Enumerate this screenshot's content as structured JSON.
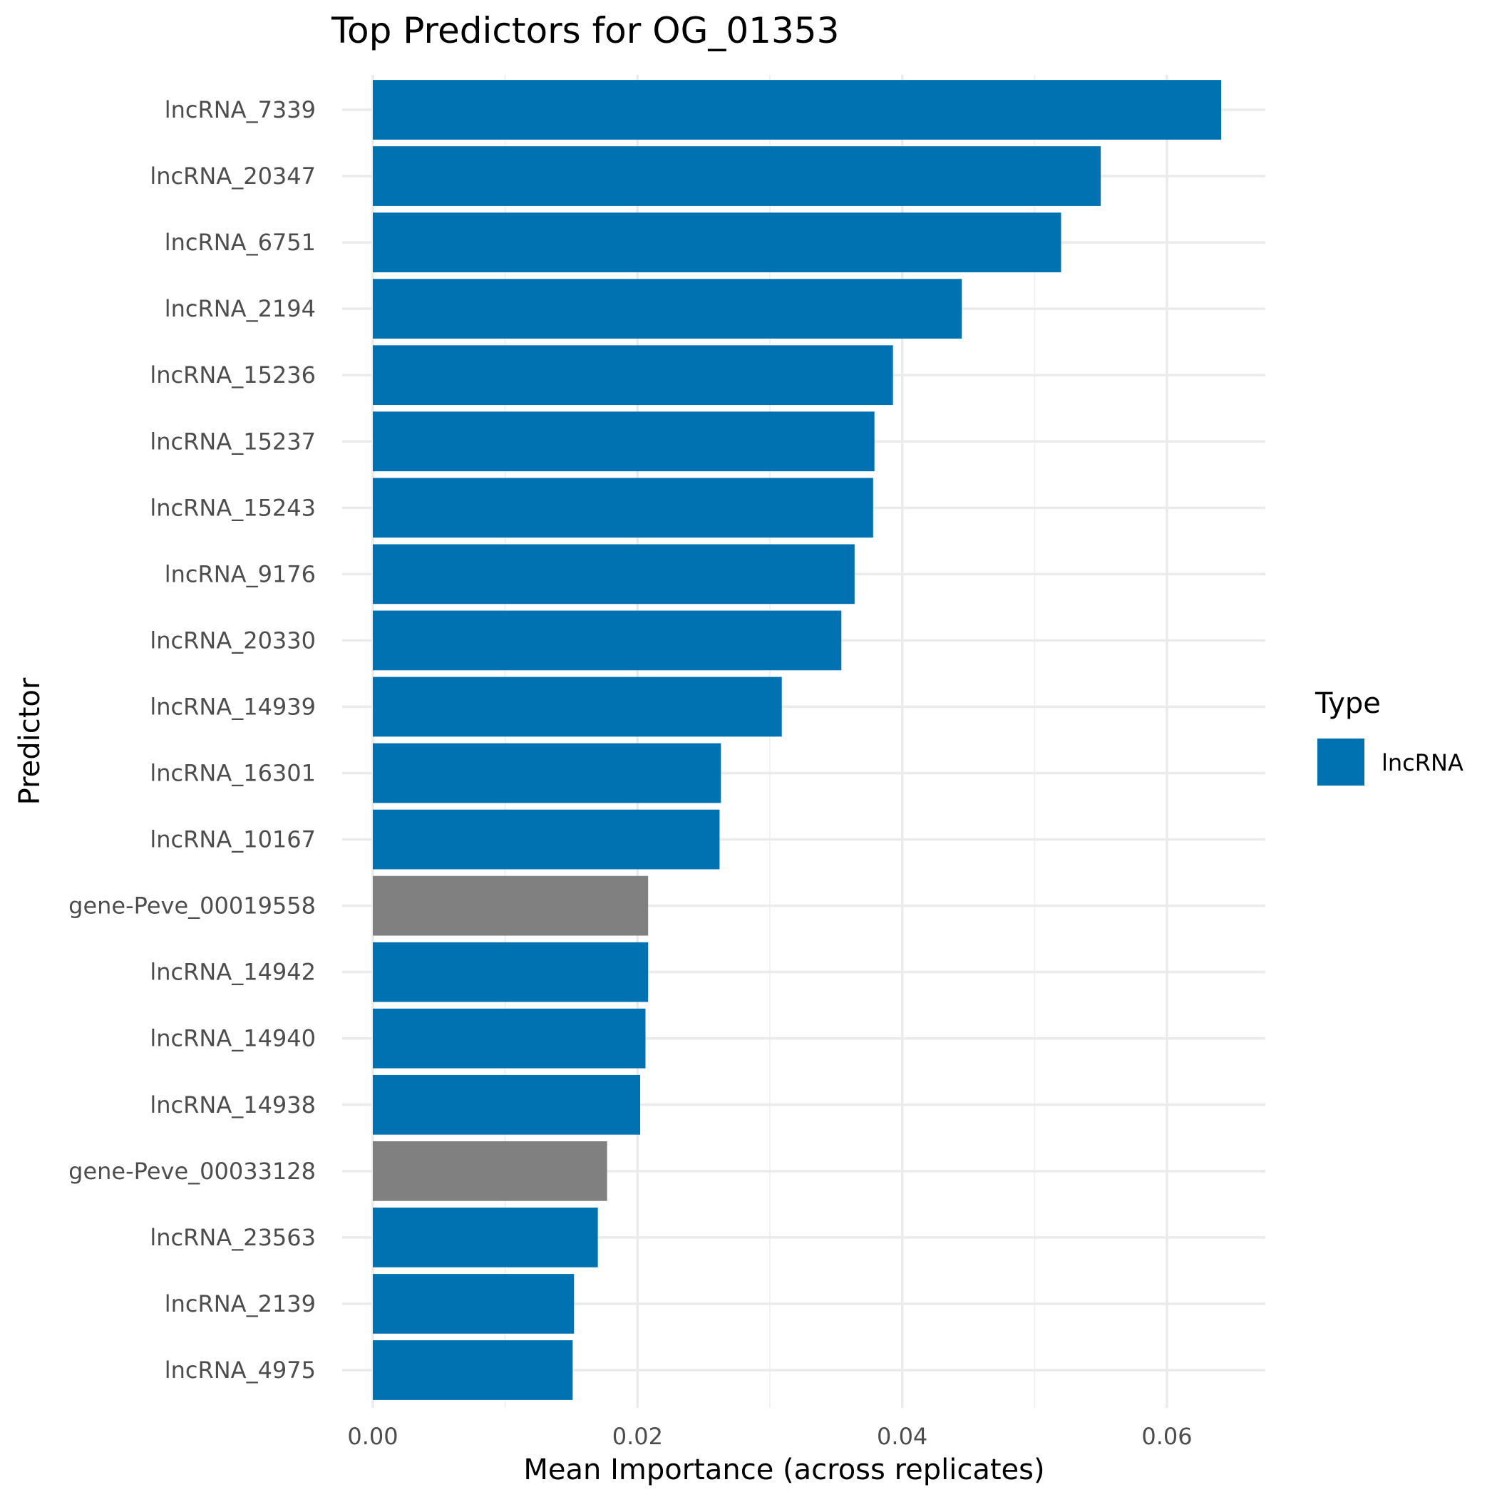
{
  "chart_data": {
    "type": "bar",
    "orientation": "horizontal",
    "title": "Top Predictors for OG_01353",
    "xlabel": "Mean Importance (across replicates)",
    "ylabel": "Predictor",
    "xlim": [
      0,
      0.0675
    ],
    "xticks": [
      0.0,
      0.02,
      0.04,
      0.06
    ],
    "xtick_labels": [
      "0.00",
      "0.02",
      "0.04",
      "0.06"
    ],
    "grid": true,
    "legend": {
      "title": "Type",
      "placement": "right",
      "entries": [
        {
          "label": "lncRNA",
          "color": "#0072B2"
        }
      ]
    },
    "colors": {
      "lncRNA": "#0072B2",
      "gene": "#808080"
    },
    "bars": [
      {
        "label": "lncRNA_7339",
        "value": 0.0641,
        "type": "lncRNA"
      },
      {
        "label": "lncRNA_20347",
        "value": 0.055,
        "type": "lncRNA"
      },
      {
        "label": "lncRNA_6751",
        "value": 0.052,
        "type": "lncRNA"
      },
      {
        "label": "lncRNA_2194",
        "value": 0.0445,
        "type": "lncRNA"
      },
      {
        "label": "lncRNA_15236",
        "value": 0.0393,
        "type": "lncRNA"
      },
      {
        "label": "lncRNA_15237",
        "value": 0.0379,
        "type": "lncRNA"
      },
      {
        "label": "lncRNA_15243",
        "value": 0.0378,
        "type": "lncRNA"
      },
      {
        "label": "lncRNA_9176",
        "value": 0.0364,
        "type": "lncRNA"
      },
      {
        "label": "lncRNA_20330",
        "value": 0.0354,
        "type": "lncRNA"
      },
      {
        "label": "lncRNA_14939",
        "value": 0.0309,
        "type": "lncRNA"
      },
      {
        "label": "lncRNA_16301",
        "value": 0.0263,
        "type": "lncRNA"
      },
      {
        "label": "lncRNA_10167",
        "value": 0.0262,
        "type": "lncRNA"
      },
      {
        "label": "gene-Peve_00019558",
        "value": 0.0208,
        "type": "gene"
      },
      {
        "label": "lncRNA_14942",
        "value": 0.0208,
        "type": "lncRNA"
      },
      {
        "label": "lncRNA_14940",
        "value": 0.0206,
        "type": "lncRNA"
      },
      {
        "label": "lncRNA_14938",
        "value": 0.0202,
        "type": "lncRNA"
      },
      {
        "label": "gene-Peve_00033128",
        "value": 0.0177,
        "type": "gene"
      },
      {
        "label": "lncRNA_23563",
        "value": 0.017,
        "type": "lncRNA"
      },
      {
        "label": "lncRNA_2139",
        "value": 0.0152,
        "type": "lncRNA"
      },
      {
        "label": "lncRNA_4975",
        "value": 0.0151,
        "type": "lncRNA"
      }
    ]
  }
}
